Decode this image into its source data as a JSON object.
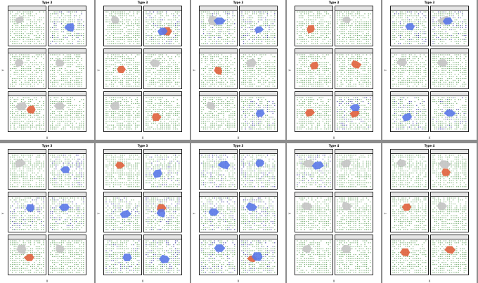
{
  "chart_data": {
    "type": "scatter",
    "description_grid": "2 rows x 5 pages of lattice maps, each page 3 rows x 2 panels",
    "x_axis_label": "X",
    "y_axis_label": "Y",
    "pages": [
      {
        "title": "Type 3"
      },
      {
        "title": "Type 3"
      },
      {
        "title": "Type 3"
      },
      {
        "title": "Type 3"
      },
      {
        "title": "Type 3"
      },
      {
        "title": "Type 3"
      },
      {
        "title": "Type 3"
      },
      {
        "title": "Type 3"
      },
      {
        "title": "Type 4"
      },
      {
        "title": "Type 4"
      }
    ],
    "panel_label": "",
    "colors": {
      "background_points": "#6ea86a",
      "gray_region": "#c4c4c4",
      "red_cluster": "#e0603c",
      "blue_cluster": "#5a78e8",
      "dark_blue_points": "#3b3b9a"
    }
  }
}
